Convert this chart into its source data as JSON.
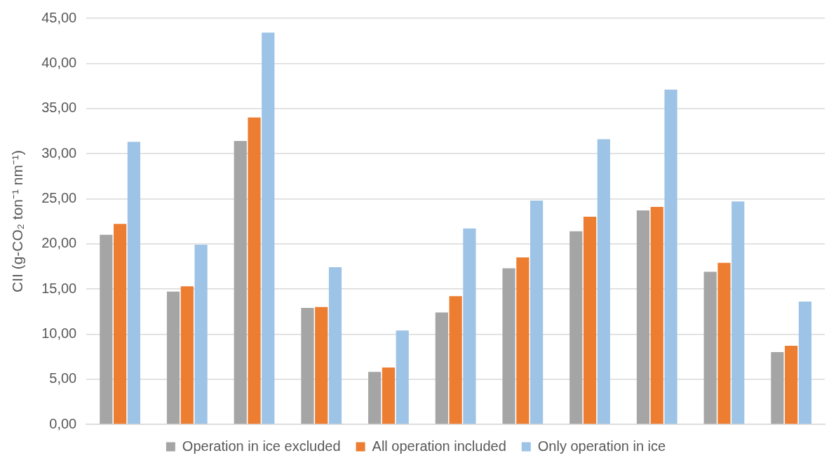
{
  "chart_data": {
    "type": "bar",
    "ylabel": "CII (g-CO₂ ton⁻¹ nm⁻¹)",
    "categories": [
      null,
      null,
      null,
      null,
      null,
      null,
      null,
      null,
      null,
      null,
      null
    ],
    "series": [
      {
        "name": "Operation in ice excluded",
        "color": "#a5a5a5",
        "values": [
          21.0,
          14.7,
          31.4,
          12.9,
          5.8,
          12.4,
          17.3,
          21.4,
          23.7,
          16.9,
          8.0
        ]
      },
      {
        "name": "All operation included",
        "color": "#ed7d31",
        "values": [
          22.2,
          15.3,
          34.0,
          13.0,
          6.3,
          14.2,
          18.5,
          23.0,
          24.1,
          17.9,
          8.7
        ]
      },
      {
        "name": "Only operation in ice",
        "color": "#9dc3e6",
        "values": [
          31.3,
          19.9,
          43.4,
          17.4,
          10.4,
          21.7,
          24.8,
          31.6,
          37.1,
          24.7,
          13.6
        ]
      }
    ],
    "ylim": [
      0,
      45
    ],
    "yticks": [
      {
        "value": 0,
        "label": "0,00"
      },
      {
        "value": 5,
        "label": "5,00"
      },
      {
        "value": 10,
        "label": "10,00"
      },
      {
        "value": 15,
        "label": "15,00"
      },
      {
        "value": 20,
        "label": "20,00"
      },
      {
        "value": 25,
        "label": "25,00"
      },
      {
        "value": 30,
        "label": "30,00"
      },
      {
        "value": 35,
        "label": "35,00"
      },
      {
        "value": 40,
        "label": "40,00"
      },
      {
        "value": 45,
        "label": "45,00"
      }
    ],
    "grid": "y",
    "legend": "bottom",
    "tick_labels": "y"
  }
}
